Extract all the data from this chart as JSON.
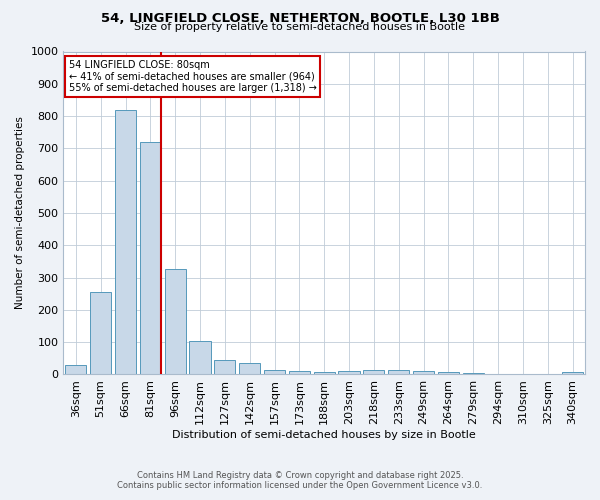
{
  "title1": "54, LINGFIELD CLOSE, NETHERTON, BOOTLE, L30 1BB",
  "title2": "Size of property relative to semi-detached houses in Bootle",
  "xlabel": "Distribution of semi-detached houses by size in Bootle",
  "ylabel": "Number of semi-detached properties",
  "categories": [
    "36sqm",
    "51sqm",
    "66sqm",
    "81sqm",
    "96sqm",
    "112sqm",
    "127sqm",
    "142sqm",
    "157sqm",
    "173sqm",
    "188sqm",
    "203sqm",
    "218sqm",
    "233sqm",
    "249sqm",
    "264sqm",
    "279sqm",
    "294sqm",
    "310sqm",
    "325sqm",
    "340sqm"
  ],
  "values": [
    30,
    255,
    820,
    720,
    325,
    103,
    45,
    35,
    15,
    12,
    7,
    12,
    15,
    15,
    12,
    8,
    3,
    0,
    0,
    0,
    8
  ],
  "bar_color": "#c8d8e8",
  "bar_edge_color": "#5599bb",
  "ref_line_index": 3,
  "ref_line_color": "#cc0000",
  "annotation_title": "54 LINGFIELD CLOSE: 80sqm",
  "annotation_line1": "← 41% of semi-detached houses are smaller (964)",
  "annotation_line2": "55% of semi-detached houses are larger (1,318) →",
  "footer1": "Contains HM Land Registry data © Crown copyright and database right 2025.",
  "footer2": "Contains public sector information licensed under the Open Government Licence v3.0.",
  "ylim": [
    0,
    1000
  ],
  "yticks": [
    0,
    100,
    200,
    300,
    400,
    500,
    600,
    700,
    800,
    900,
    1000
  ],
  "background_color": "#eef2f7",
  "plot_bg_color": "#ffffff",
  "grid_color": "#c0ccd8"
}
